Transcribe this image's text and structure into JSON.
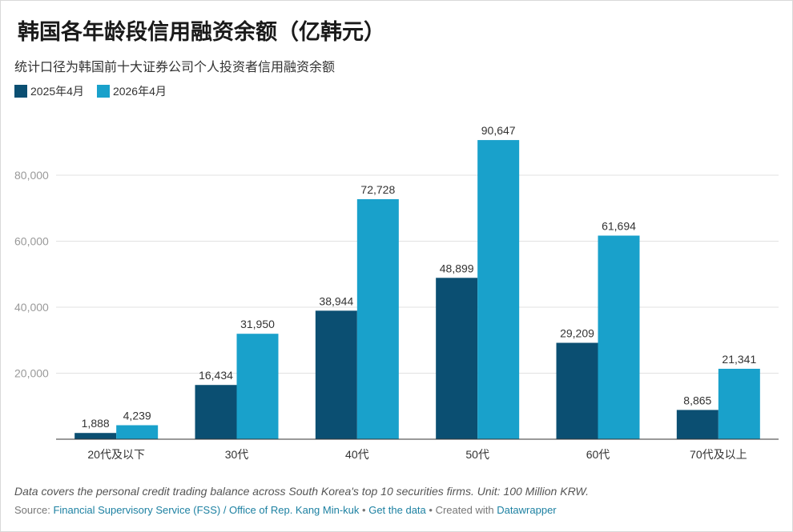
{
  "title": "韩国各年龄段信用融资余额（亿韩元）",
  "subtitle": "统计口径为韩国前十大证券公司个人投资者信用融资余额",
  "colors": {
    "series_2025": "#0b4f72",
    "series_2026": "#19a1cb"
  },
  "chart_data": {
    "type": "bar",
    "categories": [
      "20代及以下",
      "30代",
      "40代",
      "50代",
      "60代",
      "70代及以上"
    ],
    "series": [
      {
        "name": "2025年4月",
        "values": [
          1888,
          16434,
          38944,
          48899,
          29209,
          8865
        ]
      },
      {
        "name": "2026年4月",
        "values": [
          4239,
          31950,
          72728,
          90647,
          61694,
          21341
        ]
      }
    ],
    "yticks": [
      20000,
      40000,
      60000,
      80000
    ],
    "ylim": [
      0,
      100000
    ],
    "grid": true,
    "legend": "top-left"
  },
  "notes": "Data covers the personal credit trading balance across South Korea's top 10 securities firms. Unit: 100 Million KRW.",
  "source": {
    "label": "Source:",
    "link": "Financial Supervisory Service (FSS) / Office of Rep. Kang Min-kuk",
    "sep1": "•",
    "get_data": "Get the data",
    "sep2": "•",
    "created": "Created with",
    "tool": "Datawrapper"
  }
}
